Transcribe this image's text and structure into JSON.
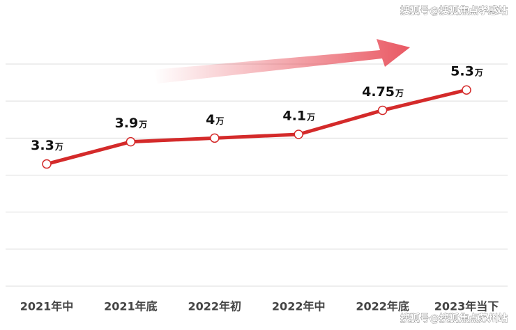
{
  "chart_data": {
    "type": "line",
    "categories": [
      "2021年中",
      "2021年底",
      "2022年初",
      "2022年中",
      "2022年底",
      "2023年当下"
    ],
    "values": [
      3.3,
      3.9,
      4,
      4.1,
      4.75,
      5.3
    ],
    "unit": "万",
    "color": "#d42a2a",
    "ylim": [
      0,
      6
    ],
    "yticks": [
      0,
      1,
      2,
      3,
      4,
      5,
      6
    ],
    "grid": true,
    "watermarks": [
      "搜狐号@搜狐焦点孝感站",
      "搜狐号@搜狐焦点苏州站"
    ]
  }
}
